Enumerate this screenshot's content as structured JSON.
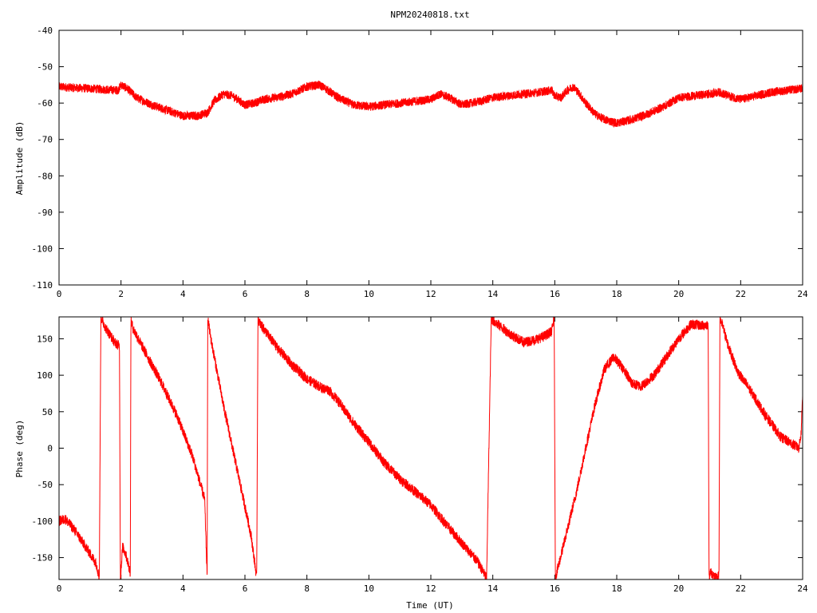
{
  "colors": {
    "series": "#ff0000",
    "axis": "#000000",
    "background": "#ffffff"
  },
  "chart_data": [
    {
      "type": "line",
      "title": "NPM20240818.txt",
      "xlabel": "",
      "ylabel": "Amplitude (dB)",
      "xlim": [
        0,
        24
      ],
      "ylim": [
        -110,
        -40
      ],
      "xticks": [
        "0",
        "2",
        "4",
        "6",
        "8",
        "10",
        "12",
        "14",
        "16",
        "18",
        "20",
        "22",
        "24"
      ],
      "yticks": [
        "-40",
        "-50",
        "-60",
        "-70",
        "-80",
        "-90",
        "-100",
        "-110"
      ],
      "grid": false,
      "series": [
        {
          "x": [
            0,
            0.5,
            1.0,
            1.5,
            1.9,
            2.0,
            2.2,
            2.5,
            3.0,
            3.5,
            4.0,
            4.5,
            4.8,
            5.0,
            5.3,
            5.6,
            6.0,
            6.3,
            6.6,
            7.0,
            7.5,
            8.0,
            8.4,
            8.6,
            9.0,
            9.5,
            10.0,
            10.5,
            11.0,
            11.5,
            12.0,
            12.3,
            12.6,
            13.0,
            13.3,
            13.6,
            14.0,
            14.5,
            15.0,
            15.5,
            15.9,
            16.0,
            16.2,
            16.4,
            16.6,
            16.8,
            17.0,
            17.3,
            17.6,
            18.0,
            18.5,
            19.0,
            19.5,
            20.0,
            20.5,
            21.0,
            21.3,
            21.6,
            22.0,
            22.5,
            23.0,
            23.5,
            24.0
          ],
          "values": [
            -55.5,
            -55.8,
            -56.0,
            -56.3,
            -56.5,
            -55.0,
            -56.0,
            -58.5,
            -60.5,
            -62.0,
            -63.5,
            -63.5,
            -62.5,
            -59.5,
            -57.5,
            -58.0,
            -60.5,
            -60.0,
            -59.0,
            -58.5,
            -57.5,
            -55.5,
            -55.0,
            -56.0,
            -58.5,
            -60.5,
            -61.0,
            -60.5,
            -60.0,
            -59.5,
            -59.0,
            -57.5,
            -58.5,
            -60.5,
            -60.0,
            -59.5,
            -58.5,
            -58.0,
            -57.5,
            -57.0,
            -56.5,
            -58.0,
            -58.5,
            -56.5,
            -55.5,
            -57.5,
            -60.0,
            -63.0,
            -64.5,
            -65.5,
            -64.5,
            -63.0,
            -61.0,
            -58.5,
            -58.0,
            -57.5,
            -57.0,
            -58.0,
            -59.0,
            -58.0,
            -57.0,
            -56.5,
            -56.0
          ],
          "noise": 1.2
        }
      ]
    },
    {
      "type": "line",
      "title": "",
      "xlabel": "Time (UT)",
      "ylabel": "Phase (deg)",
      "xlim": [
        0,
        24
      ],
      "ylim": [
        -180,
        180
      ],
      "xticks": [
        "0",
        "2",
        "4",
        "6",
        "8",
        "10",
        "12",
        "14",
        "16",
        "18",
        "20",
        "22",
        "24"
      ],
      "yticks": [
        "150",
        "100",
        "50",
        "0",
        "-50",
        "-100",
        "-150"
      ],
      "grid": false,
      "series": [
        {
          "x": [
            0,
            0.2,
            0.5,
            0.9,
            1.2,
            1.3,
            1.35,
            1.5,
            1.8,
            1.95,
            1.98,
            2.05,
            2.15,
            2.3,
            2.32,
            2.4,
            2.8,
            3.3,
            3.8,
            4.3,
            4.7,
            4.78,
            4.8,
            4.9,
            5.3,
            5.8,
            6.2,
            6.38,
            6.42,
            6.5,
            7.0,
            7.5,
            8.0,
            8.5,
            8.7,
            9.0,
            9.5,
            10.0,
            10.5,
            11.0,
            11.5,
            12.0,
            12.5,
            13.0,
            13.5,
            13.8,
            13.95,
            14.0,
            14.3,
            14.6,
            15.0,
            15.3,
            15.6,
            15.9,
            15.98,
            16.02,
            16.3,
            16.7,
            17.0,
            17.3,
            17.6,
            17.9,
            18.2,
            18.5,
            18.8,
            19.2,
            19.6,
            20.0,
            20.4,
            20.8,
            20.95,
            20.98,
            21.02,
            21.2,
            21.3,
            21.33,
            21.4,
            21.6,
            21.9,
            22.3,
            22.8,
            23.3,
            23.7,
            23.88,
            23.95,
            24.0
          ],
          "values": [
            -100,
            -97,
            -112,
            -138,
            -158,
            -178,
            180,
            165,
            145,
            140,
            -180,
            -135,
            -145,
            -170,
            175,
            163,
            130,
            90,
            45,
            -10,
            -70,
            -178,
            178,
            150,
            60,
            -40,
            -120,
            -178,
            178,
            170,
            140,
            115,
            95,
            82,
            80,
            65,
            35,
            8,
            -20,
            -42,
            -60,
            -78,
            -105,
            -130,
            -155,
            -178,
            178,
            175,
            165,
            155,
            145,
            148,
            152,
            160,
            180,
            -178,
            -130,
            -60,
            0,
            60,
            108,
            125,
            110,
            88,
            85,
            100,
            125,
            150,
            170,
            168,
            170,
            -175,
            -170,
            -178,
            -175,
            178,
            170,
            140,
            105,
            80,
            45,
            15,
            5,
            0,
            20,
            75
          ],
          "noise": 7
        }
      ]
    }
  ]
}
